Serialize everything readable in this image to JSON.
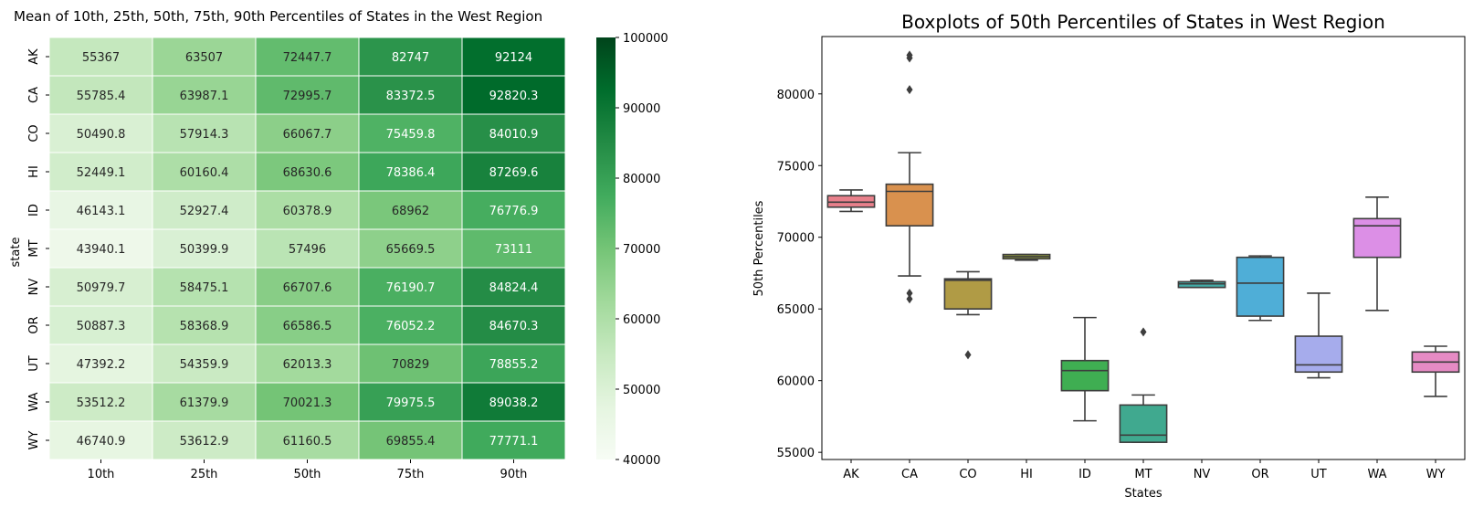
{
  "chart_data": [
    {
      "type": "heatmap",
      "title": "Mean of 10th, 25th, 50th, 75th, 90th Percentiles of States in the West Region",
      "ylabel": "state",
      "xlabel": "",
      "x_categories": [
        "10th",
        "25th",
        "50th",
        "75th",
        "90th"
      ],
      "y_categories": [
        "AK",
        "CA",
        "CO",
        "HI",
        "ID",
        "MT",
        "NV",
        "OR",
        "UT",
        "WA",
        "WY"
      ],
      "values": [
        [
          "55367",
          "63507",
          "72447.7",
          "82747",
          "92124"
        ],
        [
          "55785.4",
          "63987.1",
          "72995.7",
          "83372.5",
          "92820.3"
        ],
        [
          "50490.8",
          "57914.3",
          "66067.7",
          "75459.8",
          "84010.9"
        ],
        [
          "52449.1",
          "60160.4",
          "68630.6",
          "78386.4",
          "87269.6"
        ],
        [
          "46143.1",
          "52927.4",
          "60378.9",
          "68962",
          "76776.9"
        ],
        [
          "43940.1",
          "50399.9",
          "57496",
          "65669.5",
          "73111"
        ],
        [
          "50979.7",
          "58475.1",
          "66707.6",
          "76190.7",
          "84824.4"
        ],
        [
          "50887.3",
          "58368.9",
          "66586.5",
          "76052.2",
          "84670.3"
        ],
        [
          "47392.2",
          "54359.9",
          "62013.3",
          "70829",
          "78855.2"
        ],
        [
          "53512.2",
          "61379.9",
          "70021.3",
          "79975.5",
          "89038.2"
        ],
        [
          "46740.9",
          "53612.9",
          "61160.5",
          "69855.4",
          "77771.1"
        ]
      ],
      "colorbar": {
        "range": [
          40000,
          100000
        ],
        "ticks": [
          "40000",
          "50000",
          "60000",
          "70000",
          "80000",
          "90000",
          "100000"
        ],
        "colormap": "Greens",
        "low_color": "#f7fcf5",
        "high_color": "#00441b"
      }
    },
    {
      "type": "boxplot",
      "title": "Boxplots of 50th Percentiles of States in West Region",
      "xlabel": "States",
      "ylabel": "50th Percentiles",
      "ylim": [
        54500,
        84000
      ],
      "y_ticks": [
        "55000",
        "60000",
        "65000",
        "70000",
        "75000",
        "80000"
      ],
      "grid": false,
      "boxes": [
        {
          "label": "AK",
          "color": "#e8808b",
          "whisker_low": 71800,
          "q1": 72100,
          "median": 72450,
          "q3": 72900,
          "whisker_high": 73300,
          "outliers": []
        },
        {
          "label": "CA",
          "color": "#d9914e",
          "whisker_low": 67300,
          "q1": 70800,
          "median": 73200,
          "q3": 73700,
          "whisker_high": 75900,
          "outliers": [
            82700,
            82500,
            80300,
            66100,
            65700
          ]
        },
        {
          "label": "CO",
          "color": "#b09b45",
          "whisker_low": 64600,
          "q1": 65000,
          "median": 67000,
          "q3": 67100,
          "whisker_high": 67600,
          "outliers": [
            61800
          ]
        },
        {
          "label": "HI",
          "color": "#9aa53f",
          "whisker_low": 68400,
          "q1": 68500,
          "median": 68650,
          "q3": 68800,
          "whisker_high": 68800,
          "outliers": []
        },
        {
          "label": "ID",
          "color": "#3fae52",
          "whisker_low": 57200,
          "q1": 59300,
          "median": 60700,
          "q3": 61400,
          "whisker_high": 64400,
          "outliers": []
        },
        {
          "label": "MT",
          "color": "#40a98f",
          "whisker_low": 55700,
          "q1": 55700,
          "median": 56200,
          "q3": 58300,
          "whisker_high": 59000,
          "outliers": [
            63400
          ]
        },
        {
          "label": "NV",
          "color": "#42aaa5",
          "whisker_low": 66500,
          "q1": 66500,
          "median": 66750,
          "q3": 66900,
          "whisker_high": 67000,
          "outliers": []
        },
        {
          "label": "OR",
          "color": "#4faed7",
          "whisker_low": 64200,
          "q1": 64500,
          "median": 66800,
          "q3": 68600,
          "whisker_high": 68700,
          "outliers": []
        },
        {
          "label": "UT",
          "color": "#a6acec",
          "whisker_low": 60200,
          "q1": 60600,
          "median": 61100,
          "q3": 63100,
          "whisker_high": 66100,
          "outliers": []
        },
        {
          "label": "WA",
          "color": "#dc8fe6",
          "whisker_low": 64900,
          "q1": 68600,
          "median": 70800,
          "q3": 71300,
          "whisker_high": 72800,
          "outliers": []
        },
        {
          "label": "WY",
          "color": "#e68bc4",
          "whisker_low": 58900,
          "q1": 60600,
          "median": 61300,
          "q3": 62000,
          "whisker_high": 62400,
          "outliers": []
        }
      ]
    }
  ]
}
